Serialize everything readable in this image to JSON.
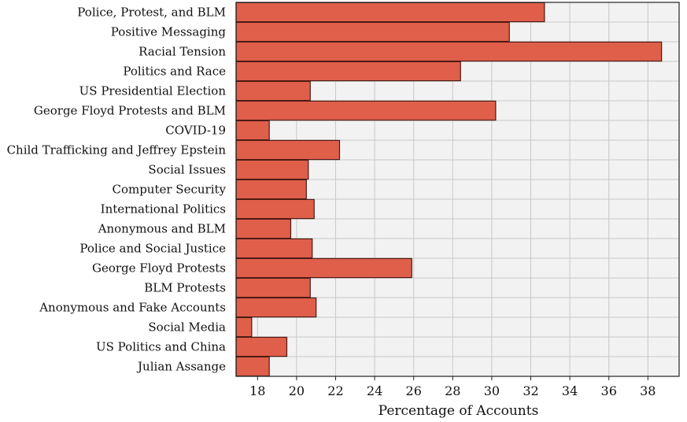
{
  "chart_data": {
    "type": "bar",
    "orientation": "horizontal",
    "categories": [
      "Police, Protest, and BLM",
      "Positive Messaging",
      "Racial Tension",
      "Politics and Race",
      "US Presidential Election",
      "George Floyd Protests and BLM",
      "COVID-19",
      "Child Trafficking and Jeffrey Epstein",
      "Social Issues",
      "Computer Security",
      "International Politics",
      "Anonymous and BLM",
      "Police and Social Justice",
      "George Floyd Protests",
      "BLM Protests",
      "Anonymous and Fake Accounts",
      "Social Media",
      "US Politics and China",
      "Julian Assange"
    ],
    "values": [
      32.7,
      30.9,
      38.7,
      28.4,
      20.7,
      30.2,
      18.6,
      22.2,
      20.6,
      20.5,
      20.9,
      19.7,
      20.8,
      25.9,
      20.7,
      21.0,
      17.7,
      19.5,
      18.6
    ],
    "xlabel": "Percentage of Accounts",
    "ylabel": "",
    "title": "",
    "xlim": [
      16.9,
      39.6
    ],
    "xticks": [
      18,
      20,
      22,
      24,
      26,
      28,
      30,
      32,
      34,
      36,
      38
    ],
    "grid": true,
    "colors": {
      "bar_fill": "#df5f4a",
      "bar_stroke": "#4a1a14",
      "plot_background": "#f2f2f2",
      "grid": "#c8c8c8",
      "frame": "#222222"
    }
  }
}
